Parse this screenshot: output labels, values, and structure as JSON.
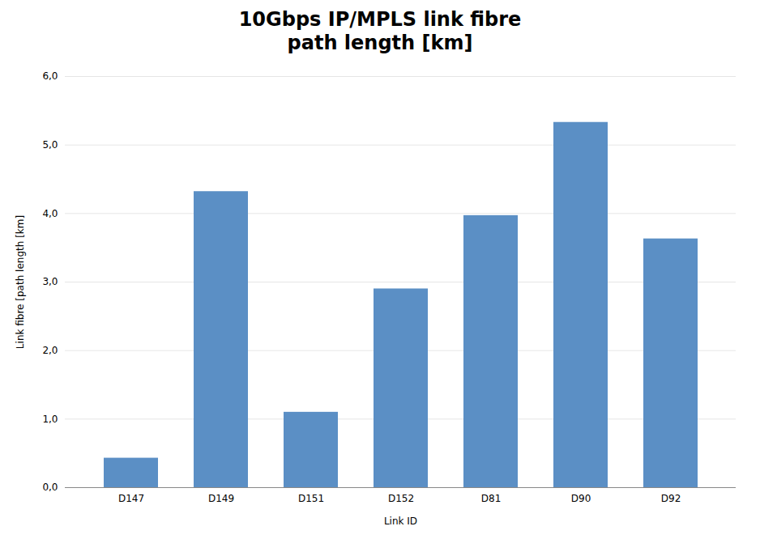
{
  "chart_data": {
    "type": "bar",
    "title": "10Gbps IP/MPLS link fibre\npath length [km]",
    "xlabel": "Link ID",
    "ylabel": "Link fibre [path length [km]",
    "categories": [
      "D147",
      "D149",
      "D151",
      "D152",
      "D81",
      "D90",
      "D92"
    ],
    "values": [
      0.43,
      4.32,
      1.1,
      2.9,
      3.97,
      5.33,
      3.63
    ],
    "color": "#5b8fc5",
    "ylim": [
      0,
      6.0
    ],
    "yticks": [
      {
        "value": 0.0,
        "label": "0,0"
      },
      {
        "value": 1.0,
        "label": "1,0"
      },
      {
        "value": 2.0,
        "label": "2,0"
      },
      {
        "value": 3.0,
        "label": "3,0"
      },
      {
        "value": 4.0,
        "label": "4,0"
      },
      {
        "value": 5.0,
        "label": "5,0"
      },
      {
        "value": 6.0,
        "label": "6,0"
      }
    ],
    "grid": true
  }
}
